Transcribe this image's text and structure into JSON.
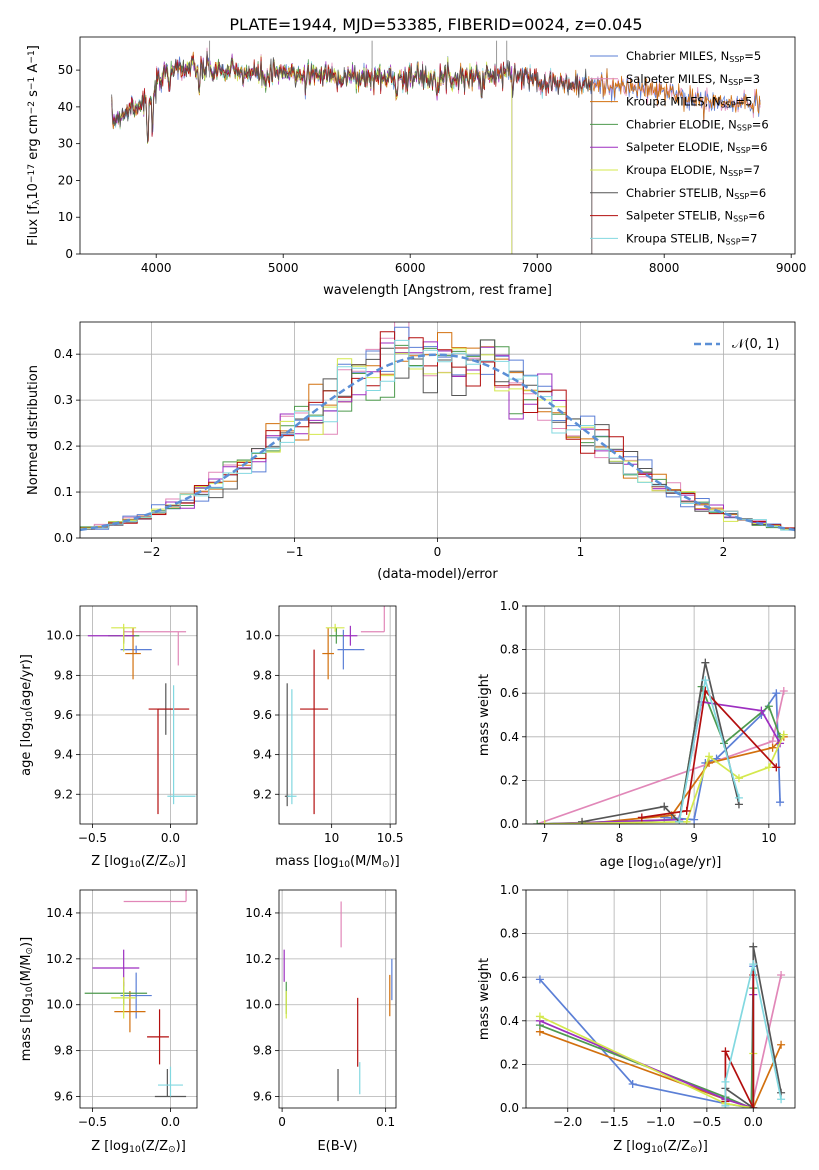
{
  "title": "PLATE=1944, MJD=53385, FIBERID=0024, z=0.045",
  "colors": {
    "Chabrier MILES": "#5b7fd6",
    "Salpeter MILES": "#e187b8",
    "Kroupa MILES": "#d2700e",
    "Chabrier ELODIE": "#4e9a4e",
    "Salpeter ELODIE": "#9d2fc0",
    "Kroupa ELODIE": "#d4e84d",
    "Chabrier STELIB": "#555555",
    "Salpeter STELIB": "#b30f0f",
    "Kroupa STELIB": "#82d8e0"
  },
  "legend": [
    {
      "model": "Chabrier MILES",
      "prefix": "Chabrier MILES, N",
      "sub": "SSP",
      "suffix": "=5"
    },
    {
      "model": "Salpeter MILES",
      "prefix": "Salpeter MILES, N",
      "sub": "SSP",
      "suffix": "=3"
    },
    {
      "model": "Kroupa MILES",
      "prefix": "Kroupa MILES, N",
      "sub": "SSP",
      "suffix": "=5"
    },
    {
      "model": "Chabrier ELODIE",
      "prefix": "Chabrier ELODIE, N",
      "sub": "SSP",
      "suffix": "=6"
    },
    {
      "model": "Salpeter ELODIE",
      "prefix": "Salpeter ELODIE, N",
      "sub": "SSP",
      "suffix": "=6"
    },
    {
      "model": "Kroupa ELODIE",
      "prefix": "Kroupa ELODIE, N",
      "sub": "SSP",
      "suffix": "=7"
    },
    {
      "model": "Chabrier STELIB",
      "prefix": "Chabrier STELIB, N",
      "sub": "SSP",
      "suffix": "=6"
    },
    {
      "model": "Salpeter STELIB",
      "prefix": "Salpeter STELIB, N",
      "sub": "SSP",
      "suffix": "=6"
    },
    {
      "model": "Kroupa STELIB",
      "prefix": "Kroupa STELIB, N",
      "sub": "SSP",
      "suffix": "=7"
    }
  ],
  "chart_data": [
    {
      "id": "spectrum",
      "type": "line",
      "xlabel": "wavelength [Angstrom, rest frame]",
      "ylabel_parts": [
        "Flux [f",
        "λ",
        "10",
        "−17",
        " erg cm",
        "−2",
        " s",
        "−1",
        " A",
        "−1",
        "]"
      ],
      "xlim": [
        3400,
        9030
      ],
      "ylim": [
        0,
        59
      ],
      "xticks": [
        4000,
        5000,
        6000,
        7000,
        8000,
        9000
      ],
      "yticks": [
        0,
        10,
        20,
        30,
        40,
        50
      ],
      "continuum_x": [
        3650,
        3800,
        3950,
        4100,
        4400,
        4800,
        5200,
        5600,
        6000,
        6400,
        6800,
        7200,
        7600,
        8000,
        8400,
        8800
      ],
      "continuum_y": [
        36,
        40,
        42,
        51,
        50,
        49,
        49,
        48,
        48,
        48,
        49,
        46,
        46,
        44,
        41,
        41
      ],
      "cutoffs": [
        {
          "model": "Kroupa ELODIE",
          "x": 3920
        },
        {
          "model": "Kroupa ELODIE",
          "x": 6800
        },
        {
          "model": "Salpeter ELODIE",
          "x": 6800
        },
        {
          "model": "Chabrier ELODIE",
          "x": 6800
        },
        {
          "model": "Salpeter STELIB",
          "x": 7430
        },
        {
          "model": "Kroupa STELIB",
          "x": 7430
        },
        {
          "model": "Chabrier STELIB",
          "x": 7430
        }
      ]
    },
    {
      "id": "residuals",
      "type": "step",
      "xlabel": "(data-model)/error",
      "ylabel": "Normed distribution",
      "xlim": [
        -2.5,
        2.5
      ],
      "ylim": [
        0,
        0.47
      ],
      "xticks": [
        -2,
        -1,
        0,
        1,
        2
      ],
      "xtick_labels": [
        "−2",
        "−1",
        "0",
        "1",
        "2"
      ],
      "yticks": [
        0.0,
        0.1,
        0.2,
        0.3,
        0.4
      ],
      "bin_width": 0.1,
      "normal_label": "𝒩(0, 1)",
      "normal_color": "#5b8fd6"
    },
    {
      "id": "age-vs-Z",
      "type": "errorbar",
      "xlabel_parts": [
        "Z [log",
        "10",
        "(Z/Z",
        "⊙",
        ")]"
      ],
      "ylabel_parts": [
        "age  [log",
        "10",
        "(age/yr)]"
      ],
      "xlim": [
        -0.58,
        0.17
      ],
      "ylim": [
        9.05,
        10.15
      ],
      "xticks": [
        -0.5,
        0.0
      ],
      "xtick_labels": [
        "−0.5",
        "0.0"
      ],
      "yticks": [
        9.2,
        9.4,
        9.6,
        9.8,
        10.0
      ],
      "points": [
        {
          "model": "Chabrier MILES",
          "x": -0.22,
          "xerr": [
            0.1,
            0.1
          ],
          "y": 9.93,
          "yerr": [
            0.02,
            0.02
          ]
        },
        {
          "model": "Salpeter MILES",
          "x": 0.05,
          "xerr": [
            0.35,
            0.05
          ],
          "y": 10.02,
          "yerr": [
            0.17,
            0.0
          ]
        },
        {
          "model": "Kroupa MILES",
          "x": -0.24,
          "xerr": [
            0.05,
            0.05
          ],
          "y": 9.91,
          "yerr": [
            0.13,
            0.13
          ]
        },
        {
          "model": "Chabrier ELODIE",
          "x": -0.3,
          "xerr": [
            0.1,
            0.1
          ],
          "y": 10.0,
          "yerr": [
            0.04,
            0.04
          ]
        },
        {
          "model": "Salpeter ELODIE",
          "x": -0.3,
          "xerr": [
            0.23,
            0.07
          ],
          "y": 10.0,
          "yerr": [
            0.03,
            0.03
          ]
        },
        {
          "model": "Kroupa ELODIE",
          "x": -0.3,
          "xerr": [
            0.08,
            0.08
          ],
          "y": 10.04,
          "yerr": [
            0.12,
            0.02
          ]
        },
        {
          "model": "Chabrier STELIB",
          "x": -0.03,
          "xerr": [
            0.05,
            0.05
          ],
          "y": 9.63,
          "yerr": [
            0.13,
            0.13
          ]
        },
        {
          "model": "Salpeter STELIB",
          "x": -0.08,
          "xerr": [
            0.06,
            0.2
          ],
          "y": 9.63,
          "yerr": [
            0.53,
            0.0
          ]
        },
        {
          "model": "Kroupa STELIB",
          "x": 0.02,
          "xerr": [
            0.04,
            0.14
          ],
          "y": 9.19,
          "yerr": [
            0.04,
            0.56
          ]
        }
      ]
    },
    {
      "id": "age-vs-mass",
      "type": "errorbar",
      "xlabel_parts": [
        "mass [log",
        "10",
        "(M/M",
        "⊙",
        ")]"
      ],
      "xlim": [
        9.55,
        10.55
      ],
      "ylim": [
        9.05,
        10.15
      ],
      "xticks": [
        10.0,
        10.5
      ],
      "yticks": [
        9.2,
        9.4,
        9.6,
        9.8,
        10.0
      ],
      "points": [
        {
          "model": "Chabrier MILES",
          "x": 10.1,
          "xerr": [
            0.05,
            0.18
          ],
          "y": 9.93,
          "yerr": [
            0.1,
            0.1
          ]
        },
        {
          "model": "Salpeter MILES",
          "x": 10.45,
          "xerr": [
            0.2,
            0.0
          ],
          "y": 10.02,
          "yerr": [
            0.0,
            0.16
          ]
        },
        {
          "model": "Kroupa MILES",
          "x": 9.97,
          "xerr": [
            0.05,
            0.05
          ],
          "y": 9.91,
          "yerr": [
            0.13,
            0.13
          ]
        },
        {
          "model": "Chabrier ELODIE",
          "x": 10.04,
          "xerr": [
            0.06,
            0.06
          ],
          "y": 10.0,
          "yerr": [
            0.04,
            0.04
          ]
        },
        {
          "model": "Salpeter ELODIE",
          "x": 10.16,
          "xerr": [
            0.06,
            0.06
          ],
          "y": 10.0,
          "yerr": [
            0.05,
            0.05
          ]
        },
        {
          "model": "Kroupa ELODIE",
          "x": 10.03,
          "xerr": [
            0.08,
            0.08
          ],
          "y": 10.04,
          "yerr": [
            0.02,
            0.02
          ]
        },
        {
          "model": "Chabrier STELIB",
          "x": 9.62,
          "xerr": [
            0.02,
            0.02
          ],
          "y": 9.19,
          "yerr": [
            0.05,
            0.57
          ]
        },
        {
          "model": "Salpeter STELIB",
          "x": 9.85,
          "xerr": [
            0.12,
            0.12
          ],
          "y": 9.63,
          "yerr": [
            0.53,
            0.3
          ]
        },
        {
          "model": "Kroupa STELIB",
          "x": 9.66,
          "xerr": [
            0.04,
            0.04
          ],
          "y": 9.19,
          "yerr": [
            0.04,
            0.54
          ]
        }
      ]
    },
    {
      "id": "weights-vs-age",
      "type": "line",
      "xlabel_parts": [
        "age  [log",
        "10",
        "(age/yr)]"
      ],
      "ylabel": "mass weight",
      "xlim": [
        6.75,
        10.35
      ],
      "ylim": [
        0,
        1.0
      ],
      "xticks": [
        7,
        8,
        9,
        10
      ],
      "yticks": [
        0.0,
        0.2,
        0.4,
        0.6,
        0.8,
        1.0
      ],
      "series": [
        {
          "model": "Chabrier MILES",
          "x": [
            8.6,
            9.0,
            9.15,
            9.3,
            9.9,
            10.1,
            10.15
          ],
          "y": [
            0.03,
            0.02,
            0.28,
            0.3,
            0.5,
            0.6,
            0.1
          ]
        },
        {
          "model": "Salpeter MILES",
          "x": [
            6.9,
            10.05,
            10.2
          ],
          "y": [
            0.0,
            0.38,
            0.61
          ]
        },
        {
          "model": "Kroupa MILES",
          "x": [
            7.5,
            8.7,
            9.2,
            10.05,
            10.2
          ],
          "y": [
            0.0,
            0.04,
            0.28,
            0.35,
            0.4
          ]
        },
        {
          "model": "Chabrier ELODIE",
          "x": [
            6.9,
            8.8,
            9.1,
            9.4,
            10.0,
            10.15
          ],
          "y": [
            0.0,
            0.02,
            0.63,
            0.37,
            0.54,
            0.4
          ]
        },
        {
          "model": "Salpeter ELODIE",
          "x": [
            7.0,
            8.8,
            9.1,
            9.9,
            10.15
          ],
          "y": [
            0.0,
            0.02,
            0.56,
            0.52,
            0.37
          ]
        },
        {
          "model": "Kroupa ELODIE",
          "x": [
            7.0,
            8.9,
            9.2,
            9.6,
            10.0,
            10.2
          ],
          "y": [
            0.0,
            0.01,
            0.31,
            0.21,
            0.26,
            0.41
          ]
        },
        {
          "model": "Chabrier STELIB",
          "x": [
            7.5,
            8.6,
            8.8,
            9.15,
            9.6
          ],
          "y": [
            0.01,
            0.08,
            0.01,
            0.74,
            0.09
          ]
        },
        {
          "model": "Salpeter STELIB",
          "x": [
            8.3,
            8.9,
            9.15,
            10.1
          ],
          "y": [
            0.03,
            0.06,
            0.61,
            0.26
          ]
        },
        {
          "model": "Kroupa STELIB",
          "x": [
            8.8,
            9.15,
            9.6
          ],
          "y": [
            0.01,
            0.66,
            0.12
          ]
        }
      ]
    },
    {
      "id": "mass-vs-Z",
      "type": "errorbar",
      "xlabel_parts": [
        "Z [log",
        "10",
        "(Z/Z",
        "⊙",
        ")]"
      ],
      "ylabel_parts": [
        "mass [log",
        "10",
        "(M/M",
        "⊙",
        ")]"
      ],
      "xlim": [
        -0.58,
        0.17
      ],
      "ylim": [
        9.55,
        10.5
      ],
      "xticks": [
        -0.5,
        0.0
      ],
      "xtick_labels": [
        "−0.5",
        "0.0"
      ],
      "yticks": [
        9.6,
        9.8,
        10.0,
        10.2,
        10.4
      ],
      "points": [
        {
          "model": "Chabrier MILES",
          "x": -0.22,
          "xerr": [
            0.1,
            0.1
          ],
          "y": 10.04,
          "yerr": [
            0.1,
            0.1
          ]
        },
        {
          "model": "Salpeter MILES",
          "x": 0.1,
          "xerr": [
            0.4,
            0.0
          ],
          "y": 10.45,
          "yerr": [
            0.0,
            0.2
          ]
        },
        {
          "model": "Kroupa MILES",
          "x": -0.26,
          "xerr": [
            0.1,
            0.1
          ],
          "y": 9.97,
          "yerr": [
            0.09,
            0.09
          ]
        },
        {
          "model": "Chabrier ELODIE",
          "x": -0.3,
          "xerr": [
            0.25,
            0.15
          ],
          "y": 10.05,
          "yerr": [
            0.05,
            0.05
          ]
        },
        {
          "model": "Salpeter ELODIE",
          "x": -0.3,
          "xerr": [
            0.2,
            0.1
          ],
          "y": 10.16,
          "yerr": [
            0.08,
            0.08
          ]
        },
        {
          "model": "Kroupa ELODIE",
          "x": -0.3,
          "xerr": [
            0.08,
            0.08
          ],
          "y": 10.03,
          "yerr": [
            0.09,
            0.09
          ]
        },
        {
          "model": "Chabrier STELIB",
          "x": -0.02,
          "xerr": [
            0.08,
            0.12
          ],
          "y": 9.6,
          "yerr": [
            0.0,
            0.12
          ]
        },
        {
          "model": "Salpeter STELIB",
          "x": -0.07,
          "xerr": [
            0.08,
            0.06
          ],
          "y": 9.86,
          "yerr": [
            0.12,
            0.12
          ]
        },
        {
          "model": "Kroupa STELIB",
          "x": 0.0,
          "xerr": [
            0.08,
            0.08
          ],
          "y": 9.65,
          "yerr": [
            0.05,
            0.08
          ]
        }
      ]
    },
    {
      "id": "mass-vs-ebv",
      "type": "errorbar",
      "xlabel": "E(B-V)",
      "xlim": [
        -0.003,
        0.11
      ],
      "ylim": [
        9.55,
        10.5
      ],
      "xticks": [
        0.0,
        0.1
      ],
      "yticks": [
        9.6,
        9.8,
        10.0,
        10.2,
        10.4
      ],
      "points": [
        {
          "model": "Chabrier MILES",
          "x": 0.106,
          "yerr": [
            0.08,
            0.1
          ],
          "y": 10.1
        },
        {
          "model": "Salpeter MILES",
          "x": 0.057,
          "yerr": [
            0.1,
            0.1
          ],
          "y": 10.35
        },
        {
          "model": "Kroupa MILES",
          "x": 0.104,
          "yerr": [
            0.09,
            0.09
          ],
          "y": 10.04
        },
        {
          "model": "Chabrier ELODIE",
          "x": 0.004,
          "yerr": [
            0.07,
            0.07
          ],
          "y": 10.03
        },
        {
          "model": "Salpeter ELODIE",
          "x": 0.002,
          "yerr": [
            0.07,
            0.07
          ],
          "y": 10.17
        },
        {
          "model": "Kroupa ELODIE",
          "x": 0.004,
          "yerr": [
            0.06,
            0.06
          ],
          "y": 10.0
        },
        {
          "model": "Chabrier STELIB",
          "x": 0.054,
          "yerr": [
            0.07,
            0.07
          ],
          "y": 9.65
        },
        {
          "model": "Salpeter STELIB",
          "x": 0.073,
          "yerr": [
            0.15,
            0.15
          ],
          "y": 9.88
        },
        {
          "model": "Kroupa STELIB",
          "x": 0.075,
          "yerr": [
            0.07,
            0.07
          ],
          "y": 9.68
        }
      ]
    },
    {
      "id": "weights-vs-Z",
      "type": "line",
      "xlabel_parts": [
        "Z [log",
        "10",
        "(Z/Z",
        "⊙",
        ")]"
      ],
      "ylabel": "mass weight",
      "xlim": [
        -2.45,
        0.45
      ],
      "ylim": [
        0,
        1.0
      ],
      "xticks": [
        -2.0,
        -1.5,
        -1.0,
        -0.5,
        0.0
      ],
      "xtick_labels": [
        "−2.0",
        "−1.5",
        "−1.0",
        "−0.5",
        "0.0"
      ],
      "yticks": [
        0.0,
        0.2,
        0.4,
        0.6,
        0.8,
        1.0
      ],
      "series": [
        {
          "model": "Chabrier MILES",
          "x": [
            -2.3,
            -1.3,
            -0.3,
            -0.02,
            0.0
          ],
          "y": [
            0.59,
            0.11,
            0.02,
            0.0,
            0.65
          ]
        },
        {
          "model": "Salpeter MILES",
          "x": [
            -0.02,
            0.3
          ],
          "y": [
            0.0,
            0.61
          ]
        },
        {
          "model": "Kroupa MILES",
          "x": [
            -2.3,
            -0.3,
            0.0,
            0.3
          ],
          "y": [
            0.35,
            0.04,
            0.0,
            0.29
          ]
        },
        {
          "model": "Chabrier ELODIE",
          "x": [
            -2.3,
            -0.3,
            -0.02,
            0.0
          ],
          "y": [
            0.38,
            0.05,
            0.0,
            0.55
          ]
        },
        {
          "model": "Salpeter ELODIE",
          "x": [
            -2.3,
            -0.3,
            0.0,
            0.0
          ],
          "y": [
            0.4,
            0.04,
            0.0,
            0.52
          ]
        },
        {
          "model": "Kroupa ELODIE",
          "x": [
            -2.3,
            -0.3,
            0.0,
            0.0
          ],
          "y": [
            0.42,
            0.02,
            0.0,
            0.25
          ]
        },
        {
          "model": "Chabrier STELIB",
          "x": [
            -0.3,
            0.0,
            0.0,
            0.3
          ],
          "y": [
            0.09,
            0.0,
            0.74,
            0.07
          ]
        },
        {
          "model": "Salpeter STELIB",
          "x": [
            -0.3,
            -0.3,
            0.0,
            0.0
          ],
          "y": [
            0.03,
            0.26,
            0.0,
            0.61
          ]
        },
        {
          "model": "Kroupa STELIB",
          "x": [
            -0.3,
            -0.3,
            0.0,
            0.3
          ],
          "y": [
            0.01,
            0.12,
            0.66,
            0.04
          ]
        }
      ]
    }
  ]
}
